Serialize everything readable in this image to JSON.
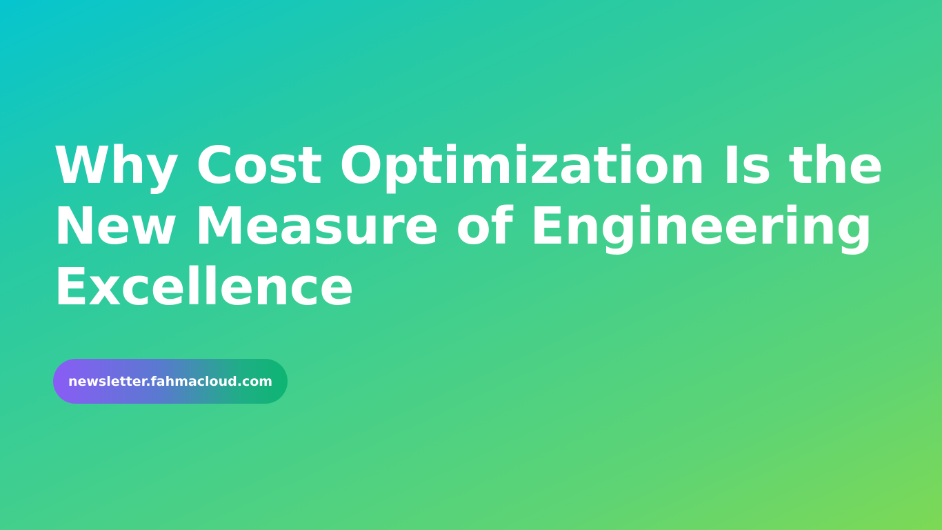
{
  "headline": {
    "lines": [
      "Why Cost Optimization Is the",
      "New Measure of Engineering",
      "Excellence"
    ]
  },
  "link": {
    "label": "newsletter.fahmacloud.com"
  },
  "colors": {
    "background_start": "#06c5cf",
    "background_end": "#7dd955",
    "pill_start": "#8a5cf6",
    "pill_end": "#0db572",
    "text": "#ffffff"
  }
}
